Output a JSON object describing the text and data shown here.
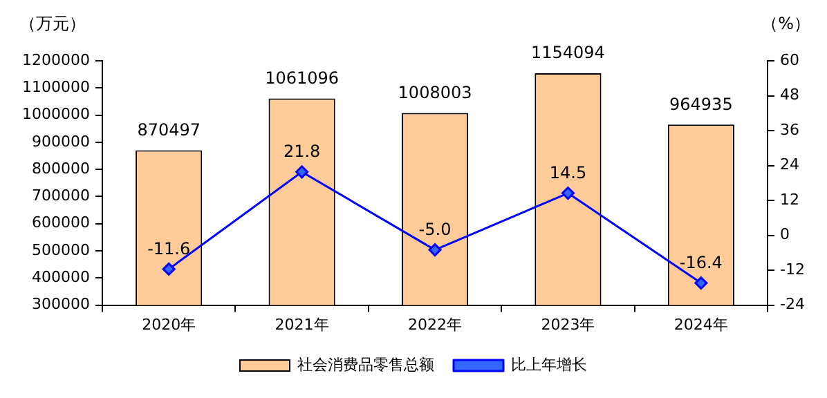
{
  "chart_data": {
    "type": "bar",
    "ylabel": "（万元）",
    "y2label": "（%）",
    "categories": [
      "2020年",
      "2021年",
      "2022年",
      "2023年",
      "2024年"
    ],
    "series": [
      {
        "name": "社会消费品零售总额",
        "color": "#ffcc99",
        "values": [
          870497,
          1061096,
          1008003,
          1154094,
          964935
        ]
      },
      {
        "name": "比上年增长",
        "type": "line",
        "axis": "y2",
        "color": "#0000ff",
        "marker": "diamond",
        "values": [
          -11.6,
          21.8,
          -5.0,
          14.5,
          -16.4
        ],
        "value_labels": [
          "-11.6",
          "21.8",
          "-5.0",
          "14.5",
          "-16.4"
        ]
      }
    ],
    "ylim": [
      300000,
      1200000
    ],
    "yticks": [
      300000,
      400000,
      500000,
      600000,
      700000,
      800000,
      900000,
      1000000,
      1100000,
      1200000
    ],
    "y2lim": [
      -24,
      60
    ],
    "y2ticks": [
      -24,
      -12,
      0,
      12,
      24,
      36,
      48,
      60
    ],
    "data_labels": true,
    "grid": false,
    "legend": "bottom"
  }
}
